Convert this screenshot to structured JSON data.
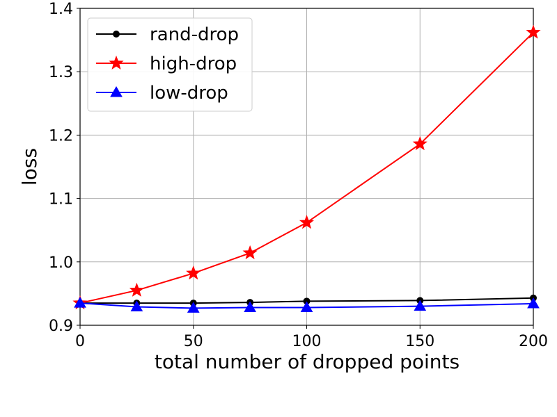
{
  "chart_data": {
    "type": "line",
    "xlabel": "total number of dropped points",
    "ylabel": "loss",
    "xlim": [
      0,
      200
    ],
    "ylim": [
      0.9,
      1.4
    ],
    "x_ticks": [
      0,
      50,
      100,
      150,
      200
    ],
    "y_ticks": [
      0.9,
      1.0,
      1.1,
      1.2,
      1.3,
      1.4
    ],
    "x_tick_labels": [
      "0",
      "50",
      "100",
      "150",
      "200"
    ],
    "y_tick_labels": [
      "0.9",
      "1.0",
      "1.1",
      "1.2",
      "1.3",
      "1.4"
    ],
    "grid": true,
    "legend_position": "top-left",
    "x": [
      0,
      25,
      50,
      75,
      100,
      150,
      200
    ],
    "series": [
      {
        "name": "rand-drop",
        "color": "#000000",
        "marker": "circle",
        "values": [
          0.935,
          0.935,
          0.935,
          0.936,
          0.938,
          0.939,
          0.943
        ]
      },
      {
        "name": "high-drop",
        "color": "#ff0000",
        "marker": "star",
        "values": [
          0.935,
          0.955,
          0.982,
          1.014,
          1.062,
          1.186,
          1.362
        ]
      },
      {
        "name": "low-drop",
        "color": "#0000ff",
        "marker": "triangle",
        "values": [
          0.935,
          0.929,
          0.927,
          0.928,
          0.928,
          0.93,
          0.934
        ]
      }
    ]
  }
}
